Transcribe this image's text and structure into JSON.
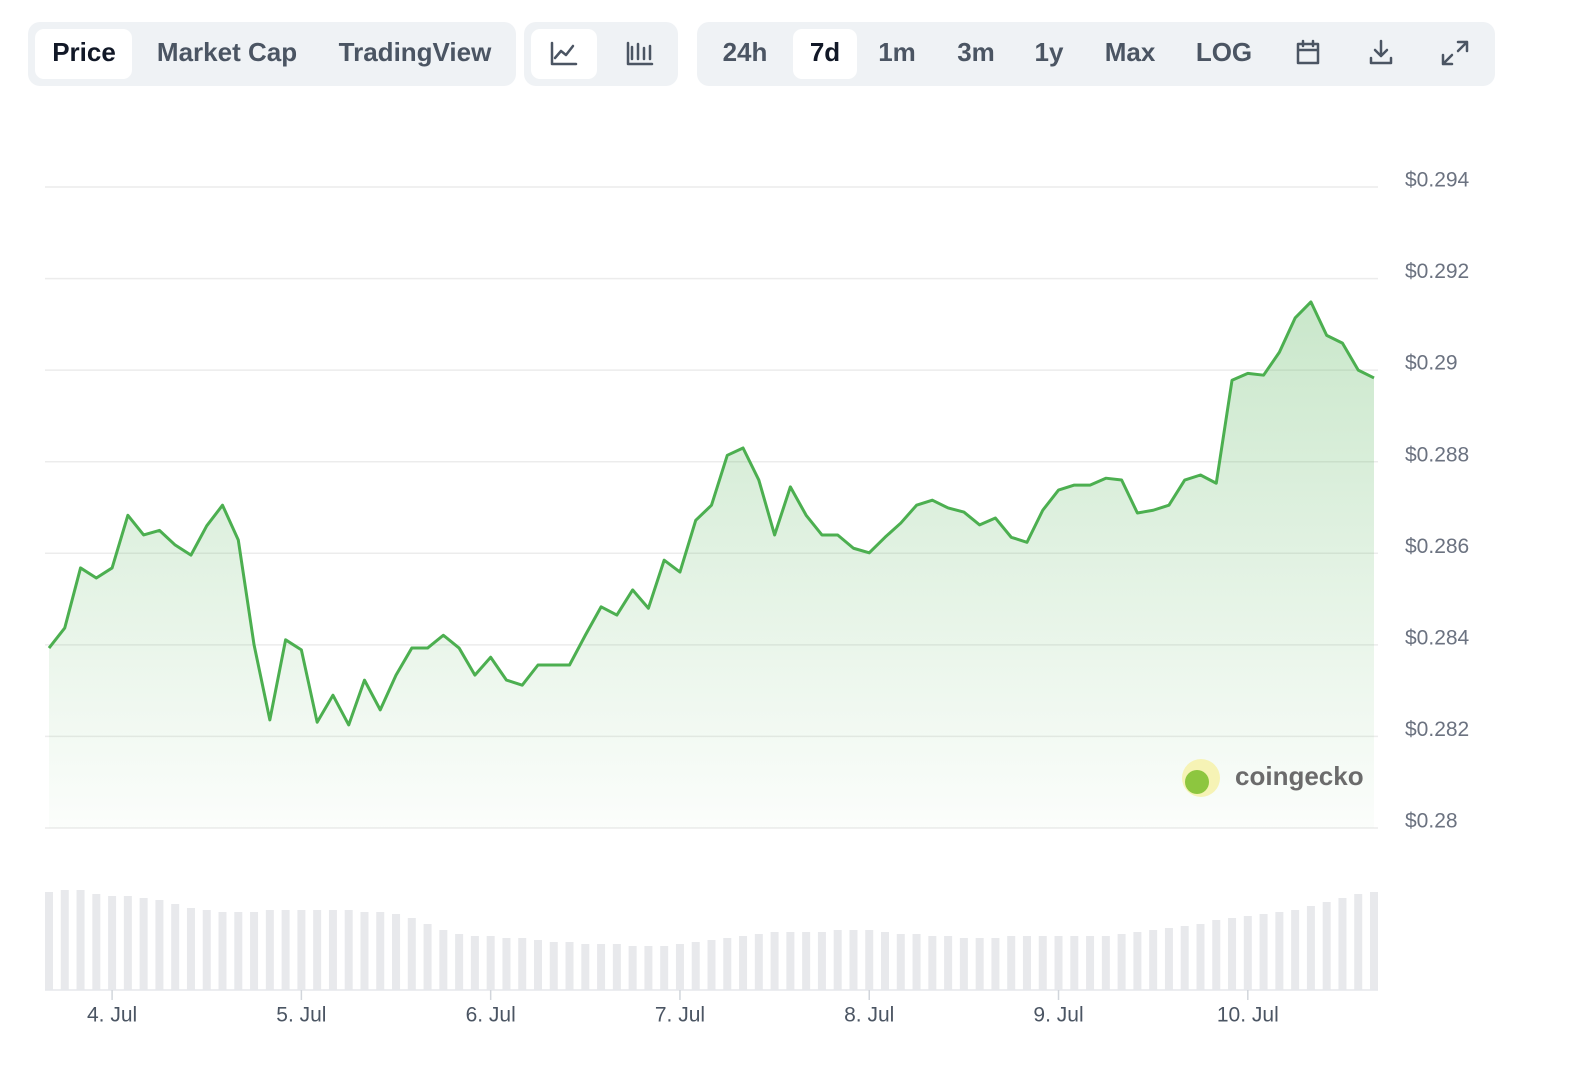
{
  "toolbar": {
    "views": [
      "Price",
      "Market Cap",
      "TradingView"
    ],
    "active_view": 0,
    "ranges": [
      "24h",
      "7d",
      "1m",
      "3m",
      "1y",
      "Max",
      "LOG"
    ],
    "active_range": 1
  },
  "watermark": "coingecko",
  "chart_data": {
    "type": "line",
    "categories": [
      null,
      null,
      null,
      null,
      "4. Jul",
      null,
      null,
      null,
      null,
      null,
      null,
      null,
      null,
      null,
      null,
      null,
      "5. Jul",
      null,
      null,
      null,
      null,
      null,
      null,
      null,
      null,
      null,
      null,
      null,
      "6. Jul",
      null,
      null,
      null,
      null,
      null,
      null,
      null,
      null,
      null,
      null,
      null,
      "7. Jul",
      null,
      null,
      null,
      null,
      null,
      null,
      null,
      null,
      null,
      null,
      null,
      "8. Jul",
      null,
      null,
      null,
      null,
      null,
      null,
      null,
      null,
      null,
      null,
      null,
      "9. Jul",
      null,
      null,
      null,
      null,
      null,
      null,
      null,
      null,
      null,
      null,
      null,
      "10. Jul",
      null,
      null,
      null,
      null,
      null,
      null,
      null,
      null
    ],
    "series": [
      {
        "name": "Price",
        "color": "#4caf50",
        "values": [
          0.28393,
          0.28437,
          0.28568,
          0.28546,
          0.28568,
          0.28683,
          0.2864,
          0.2865,
          0.28618,
          0.28596,
          0.2866,
          0.28705,
          0.28629,
          0.284,
          0.28236,
          0.28411,
          0.28389,
          0.28231,
          0.2829,
          0.28225,
          0.28323,
          0.28258,
          0.28334,
          0.28393,
          0.28393,
          0.28421,
          0.28393,
          0.28334,
          0.28373,
          0.28323,
          0.28312,
          0.28356,
          0.28356,
          0.28356,
          0.28421,
          0.28483,
          0.28465,
          0.2852,
          0.2848,
          0.28585,
          0.28559,
          0.28672,
          0.28705,
          0.28814,
          0.2883,
          0.2876,
          0.2864,
          0.28745,
          0.28683,
          0.2864,
          0.2864,
          0.28611,
          0.28601,
          0.28635,
          0.28666,
          0.28705,
          0.28716,
          0.28699,
          0.2869,
          0.28662,
          0.28677,
          0.28635,
          0.28624,
          0.28694,
          0.28738,
          0.28749,
          0.28749,
          0.28764,
          0.2876,
          0.28688,
          0.28694,
          0.28705,
          0.2876,
          0.28771,
          0.28753,
          0.28978,
          0.28993,
          0.28989,
          0.29039,
          0.29114,
          0.29149,
          0.29076,
          0.29059,
          0.29,
          0.28983
        ]
      }
    ],
    "volume": {
      "color": "#e8e9ec",
      "values": [
        98,
        100,
        100,
        96,
        94,
        94,
        92,
        90,
        86,
        82,
        80,
        78,
        78,
        78,
        80,
        80,
        80,
        80,
        80,
        80,
        78,
        78,
        76,
        72,
        66,
        60,
        56,
        54,
        54,
        52,
        52,
        50,
        48,
        48,
        46,
        46,
        46,
        44,
        44,
        44,
        46,
        48,
        50,
        52,
        54,
        56,
        58,
        58,
        58,
        58,
        60,
        60,
        60,
        58,
        56,
        56,
        54,
        54,
        52,
        52,
        52,
        54,
        54,
        54,
        54,
        54,
        54,
        54,
        56,
        58,
        60,
        62,
        64,
        66,
        70,
        72,
        74,
        76,
        78,
        80,
        84,
        88,
        92,
        96,
        98
      ]
    },
    "ylim": [
      0.28,
      0.294
    ],
    "yticks": [
      {
        "value": 0.28,
        "label": "$0.28"
      },
      {
        "value": 0.282,
        "label": "$0.282"
      },
      {
        "value": 0.284,
        "label": "$0.284"
      },
      {
        "value": 0.286,
        "label": "$0.286"
      },
      {
        "value": 0.288,
        "label": "$0.288"
      },
      {
        "value": 0.29,
        "label": "$0.29"
      },
      {
        "value": 0.292,
        "label": "$0.292"
      },
      {
        "value": 0.294,
        "label": "$0.294"
      }
    ],
    "grid": true
  }
}
